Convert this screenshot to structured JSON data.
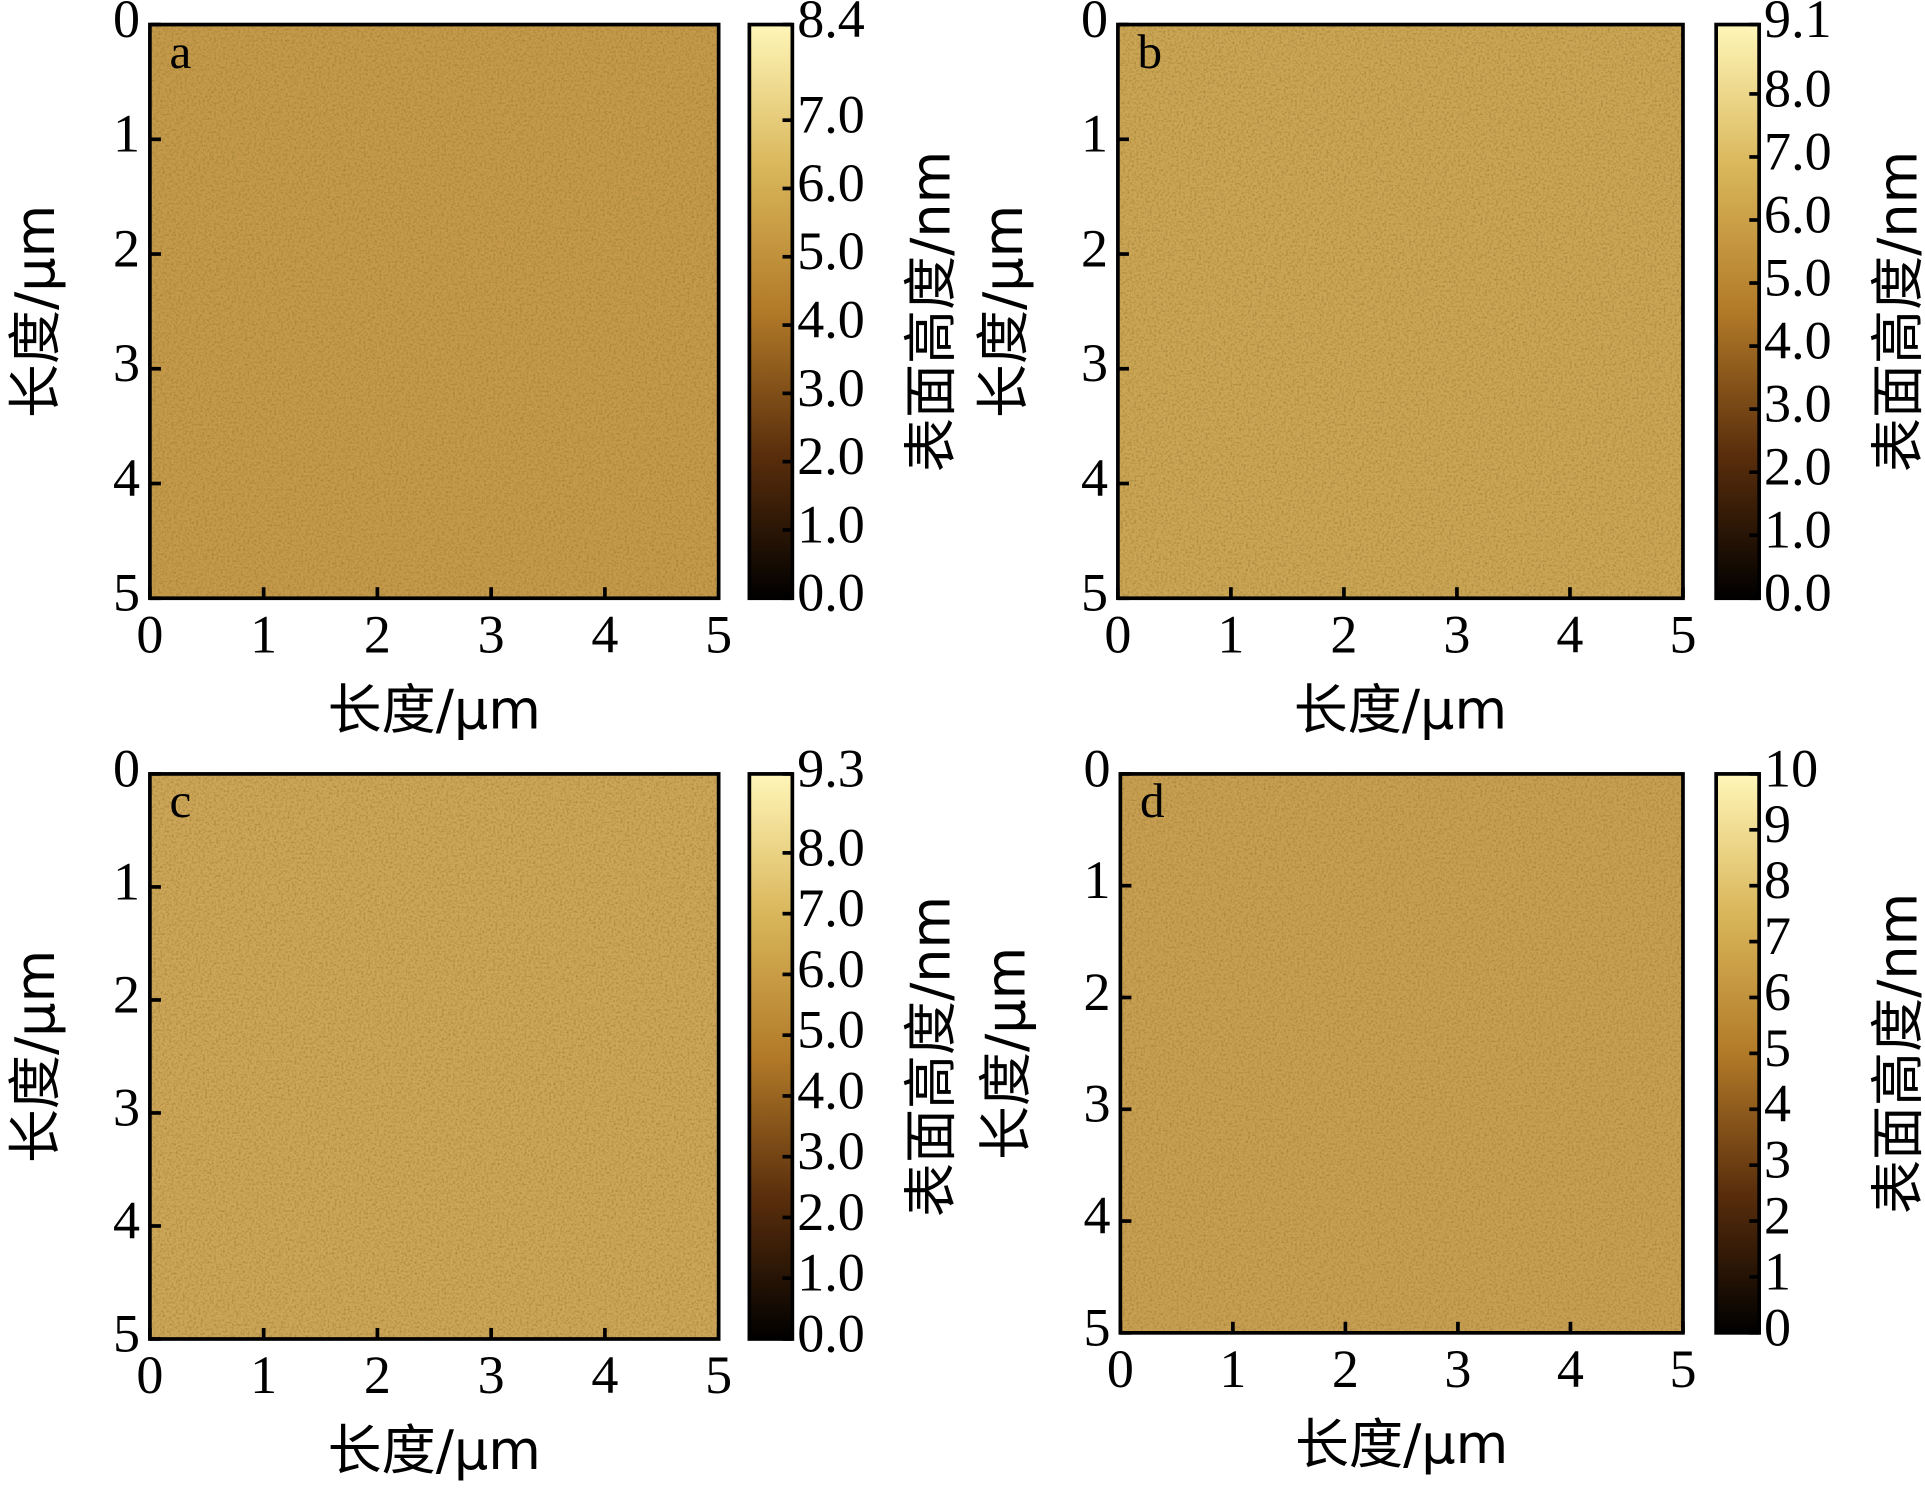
{
  "chart_data": [
    {
      "type": "afm-image",
      "panel_label": "a",
      "xlabel": "长度/μm",
      "ylabel": "长度/μm",
      "colorbar_label": "表面高度/nm",
      "xlim": [
        0,
        5
      ],
      "ylim": [
        5,
        0
      ],
      "xticks": [
        0,
        1,
        2,
        3,
        4,
        5
      ],
      "yticks": [
        0,
        1,
        2,
        3,
        4,
        5
      ],
      "clim": [
        0,
        8.4
      ],
      "cticks": [
        {
          "value": 0,
          "label": "0.0"
        },
        {
          "value": 1,
          "label": "1.0"
        },
        {
          "value": 2,
          "label": "2.0"
        },
        {
          "value": 3,
          "label": "3.0"
        },
        {
          "value": 4,
          "label": "4.0"
        },
        {
          "value": 5,
          "label": "5.0"
        },
        {
          "value": 6,
          "label": "6.0"
        },
        {
          "value": 7,
          "label": "7.0"
        },
        8.4
      ],
      "color": "#c59a4a",
      "colormap": [
        "#000000",
        "#5a2e0c",
        "#b27a28",
        "#d9b65a",
        "#fff6b8"
      ]
    },
    {
      "type": "afm-image",
      "panel_label": "b",
      "xlabel": "长度/μm",
      "ylabel": "长度/μm",
      "colorbar_label": "表面高度/nm",
      "xlim": [
        0,
        5
      ],
      "ylim": [
        5,
        0
      ],
      "xticks": [
        0,
        1,
        2,
        3,
        4,
        5
      ],
      "yticks": [
        0,
        1,
        2,
        3,
        4,
        5
      ],
      "clim": [
        0,
        9.1
      ],
      "cticks": [
        {
          "value": 0,
          "label": "0.0"
        },
        {
          "value": 1,
          "label": "1.0"
        },
        {
          "value": 2,
          "label": "2.0"
        },
        {
          "value": 3,
          "label": "3.0"
        },
        {
          "value": 4,
          "label": "4.0"
        },
        {
          "value": 5,
          "label": "5.0"
        },
        {
          "value": 6,
          "label": "6.0"
        },
        {
          "value": 7,
          "label": "7.0"
        },
        {
          "value": 8,
          "label": "8.0"
        },
        9.1
      ],
      "color": "#cba655",
      "colormap": [
        "#000000",
        "#5a2e0c",
        "#b27a28",
        "#d9b65a",
        "#fff6b8"
      ]
    },
    {
      "type": "afm-image",
      "panel_label": "c",
      "xlabel": "长度/μm",
      "ylabel": "长度/μm",
      "colorbar_label": "表面高度/nm",
      "xlim": [
        0,
        5
      ],
      "ylim": [
        5,
        0
      ],
      "xticks": [
        0,
        1,
        2,
        3,
        4,
        5
      ],
      "yticks": [
        0,
        1,
        2,
        3,
        4,
        5
      ],
      "clim": [
        0,
        9.3
      ],
      "cticks": [
        {
          "value": 0,
          "label": "0.0"
        },
        {
          "value": 1,
          "label": "1.0"
        },
        {
          "value": 2,
          "label": "2.0"
        },
        {
          "value": 3,
          "label": "3.0"
        },
        {
          "value": 4,
          "label": "4.0"
        },
        {
          "value": 5,
          "label": "5.0"
        },
        {
          "value": 6,
          "label": "6.0"
        },
        {
          "value": 7,
          "label": "7.0"
        },
        {
          "value": 8,
          "label": "8.0"
        },
        9.3
      ],
      "color": "#cda658",
      "colormap": [
        "#000000",
        "#5a2e0c",
        "#b27a28",
        "#d9b65a",
        "#fff6b8"
      ]
    },
    {
      "type": "afm-image",
      "panel_label": "d",
      "xlabel": "长度/μm",
      "ylabel": "长度/μm",
      "colorbar_label": "表面高度/nm",
      "xlim": [
        0,
        5
      ],
      "ylim": [
        5,
        0
      ],
      "xticks": [
        0,
        1,
        2,
        3,
        4,
        5
      ],
      "yticks": [
        0,
        1,
        2,
        3,
        4,
        5
      ],
      "clim": [
        0,
        10
      ],
      "cticks": [
        0,
        1,
        2,
        3,
        4,
        5,
        6,
        7,
        8,
        9,
        10
      ],
      "color": "#c9a052",
      "colormap": [
        "#000000",
        "#5a2e0c",
        "#b27a28",
        "#d9b65a",
        "#fff6b8"
      ]
    }
  ]
}
